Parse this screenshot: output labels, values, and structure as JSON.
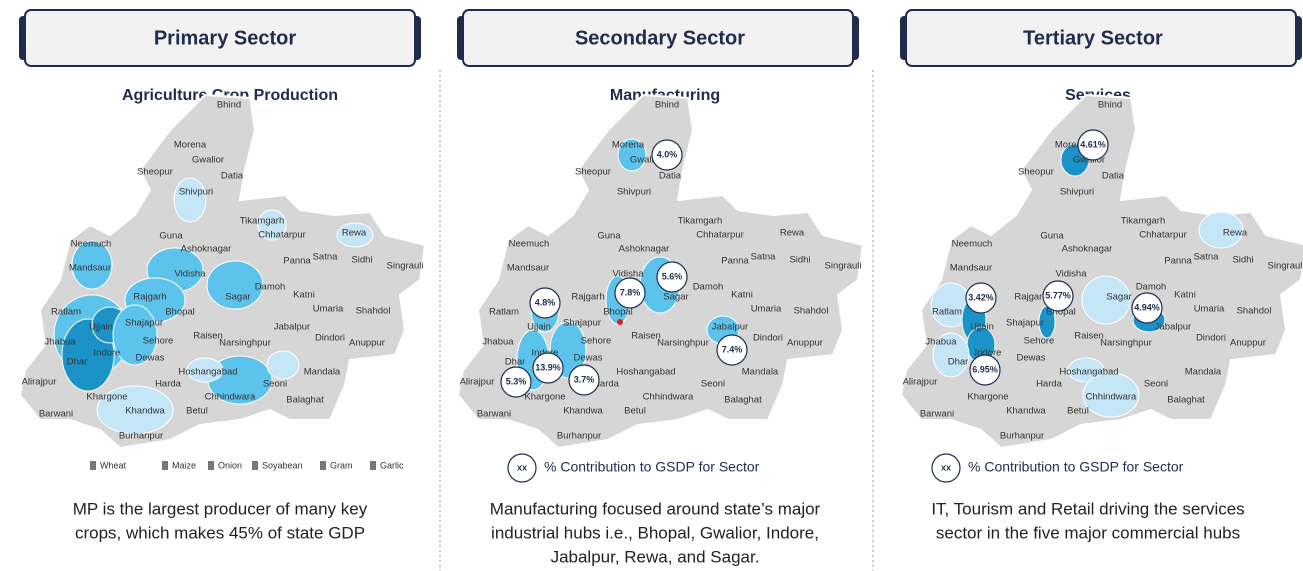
{
  "map": {
    "districts": [
      "Bhind",
      "Morena",
      "Gwalior",
      "Sheopur",
      "Datia",
      "Shivpuri",
      "Tikamgarh",
      "Guna",
      "Ashoknagar",
      "Chhatarpur",
      "Rewa",
      "Neemuch",
      "Panna",
      "Satna",
      "Sidhi",
      "Singrauli",
      "Mandsaur",
      "Vidisha",
      "Rajgarh",
      "Sagar",
      "Damoh",
      "Katni",
      "Bhopal",
      "Umaria",
      "Shahdol",
      "Ratlam",
      "Ujjain",
      "Shajapur",
      "Raisen",
      "Jabalpur",
      "Sehore",
      "Dindori",
      "Anuppur",
      "Jhabua",
      "Indore",
      "Narsinghpur",
      "Dewas",
      "Dhar",
      "Hoshangabad",
      "Mandala",
      "Seoni",
      "Alirajpur",
      "Harda",
      "Khargone",
      "Chhindwara",
      "Balaghat",
      "Khandwa",
      "Betul",
      "Barwani",
      "Burhanpur"
    ]
  },
  "panels": [
    {
      "title": "Primary Sector",
      "subtitle": "Agriculture Crop Production",
      "legend": [
        "Wheat",
        "Maize",
        "Onion",
        "Soyabean",
        "Gram",
        "Garlic"
      ],
      "caption": [
        "MP is the largest producer of many key",
        "crops, which makes 45% of state GDP"
      ]
    },
    {
      "title": "Secondary Sector",
      "subtitle": "Manufacturing",
      "bubbles": [
        "4.0%",
        "5.6%",
        "7.8%",
        "4.8%",
        "7.4%",
        "13.9%",
        "3.7%",
        "5.3%"
      ],
      "key": {
        "symbol": "xx",
        "text": "% Contribution to GSDP for Sector"
      },
      "caption": [
        "Manufacturing focused around state’s major",
        "industrial hubs i.e., Bhopal, Gwalior, Indore,",
        "Jabalpur, Rewa, and Sagar."
      ]
    },
    {
      "title": "Tertiary Sector",
      "subtitle": "Services",
      "bubbles": [
        "4.61%",
        "3.42%",
        "5.77%",
        "4.94%",
        "6.95%"
      ],
      "key": {
        "symbol": "xx",
        "text": "% Contribution to GSDP for Sector"
      },
      "caption": [
        "IT, Tourism and Retail driving the services",
        "sector in the five major commercial hubs"
      ]
    }
  ]
}
